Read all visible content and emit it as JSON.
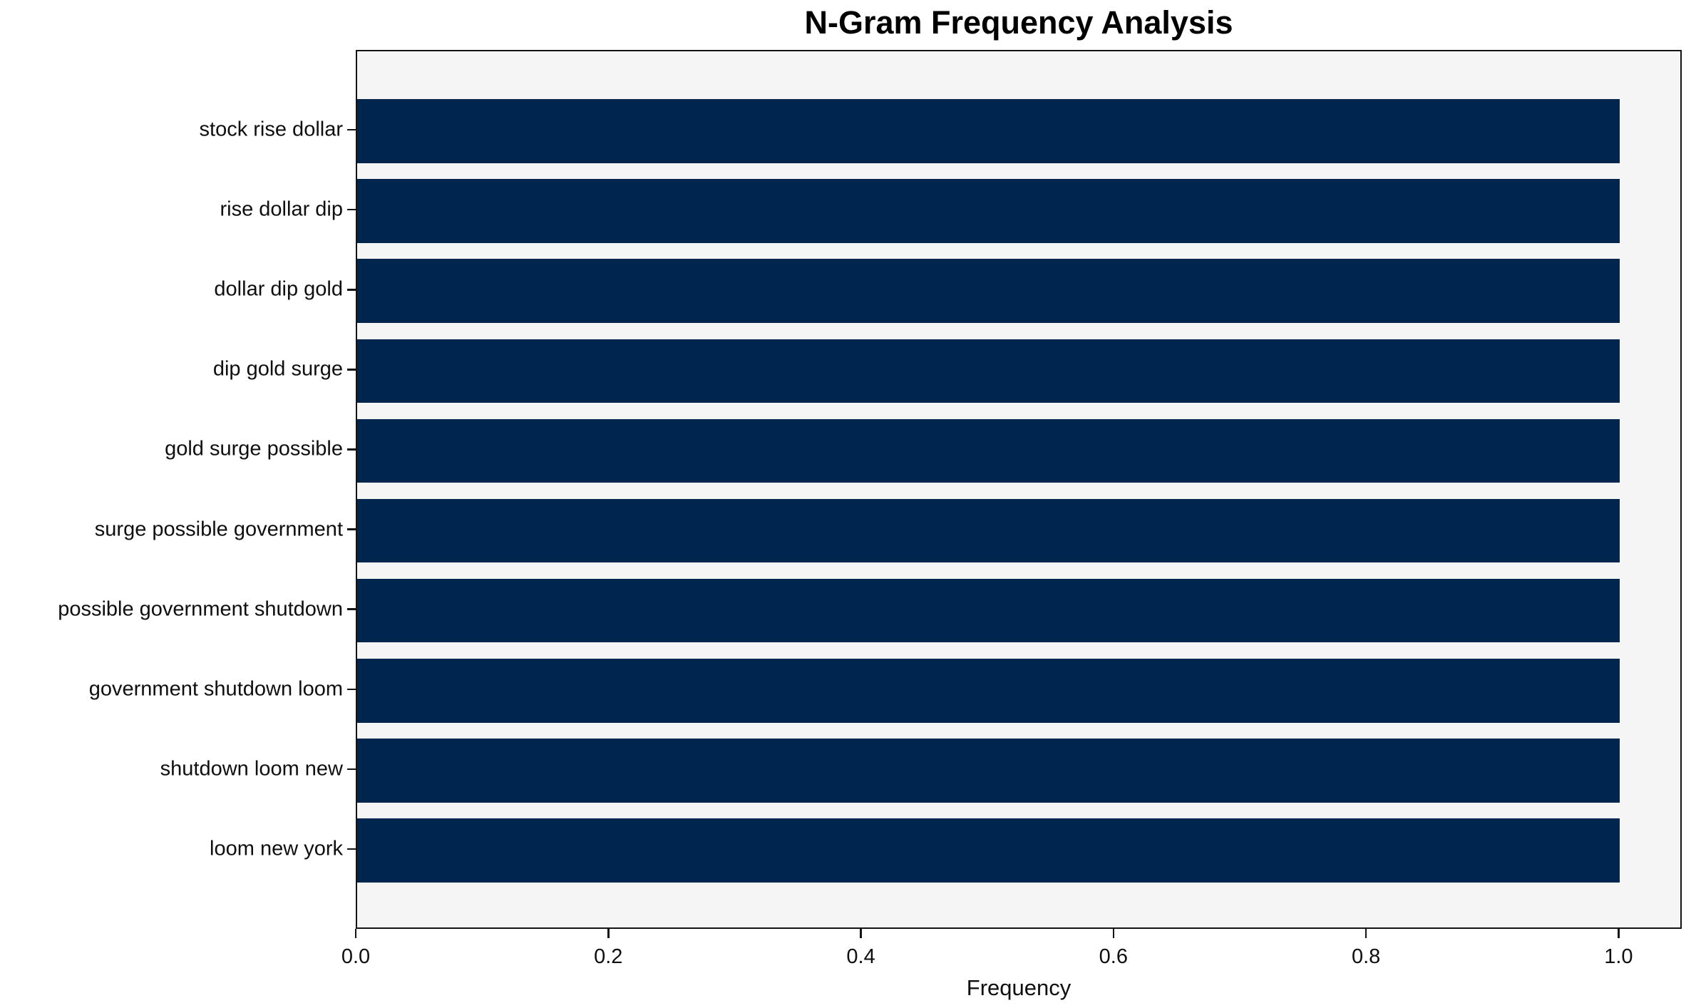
{
  "figure": {
    "background": "#ffffff"
  },
  "chart_data": {
    "type": "bar",
    "orientation": "horizontal",
    "title": "N-Gram Frequency Analysis",
    "xlabel": "Frequency",
    "ylabel": "",
    "categories": [
      "stock rise dollar",
      "rise dollar dip",
      "dollar dip gold",
      "dip gold surge",
      "gold surge possible",
      "surge possible government",
      "possible government shutdown",
      "government shutdown loom",
      "shutdown loom new",
      "loom new york"
    ],
    "values": [
      1.0,
      1.0,
      1.0,
      1.0,
      1.0,
      1.0,
      1.0,
      1.0,
      1.0,
      1.0
    ],
    "xlim": [
      0,
      1.05
    ],
    "xticks": [
      "0.0",
      "0.2",
      "0.4",
      "0.6",
      "0.8",
      "1.0"
    ],
    "xtick_values": [
      0.0,
      0.2,
      0.4,
      0.6,
      0.8,
      1.0
    ],
    "grid": false,
    "legend_position": "none",
    "bar_color": "#00254f",
    "plot_background": "#f5f5f6",
    "spine_color": "#141414"
  }
}
